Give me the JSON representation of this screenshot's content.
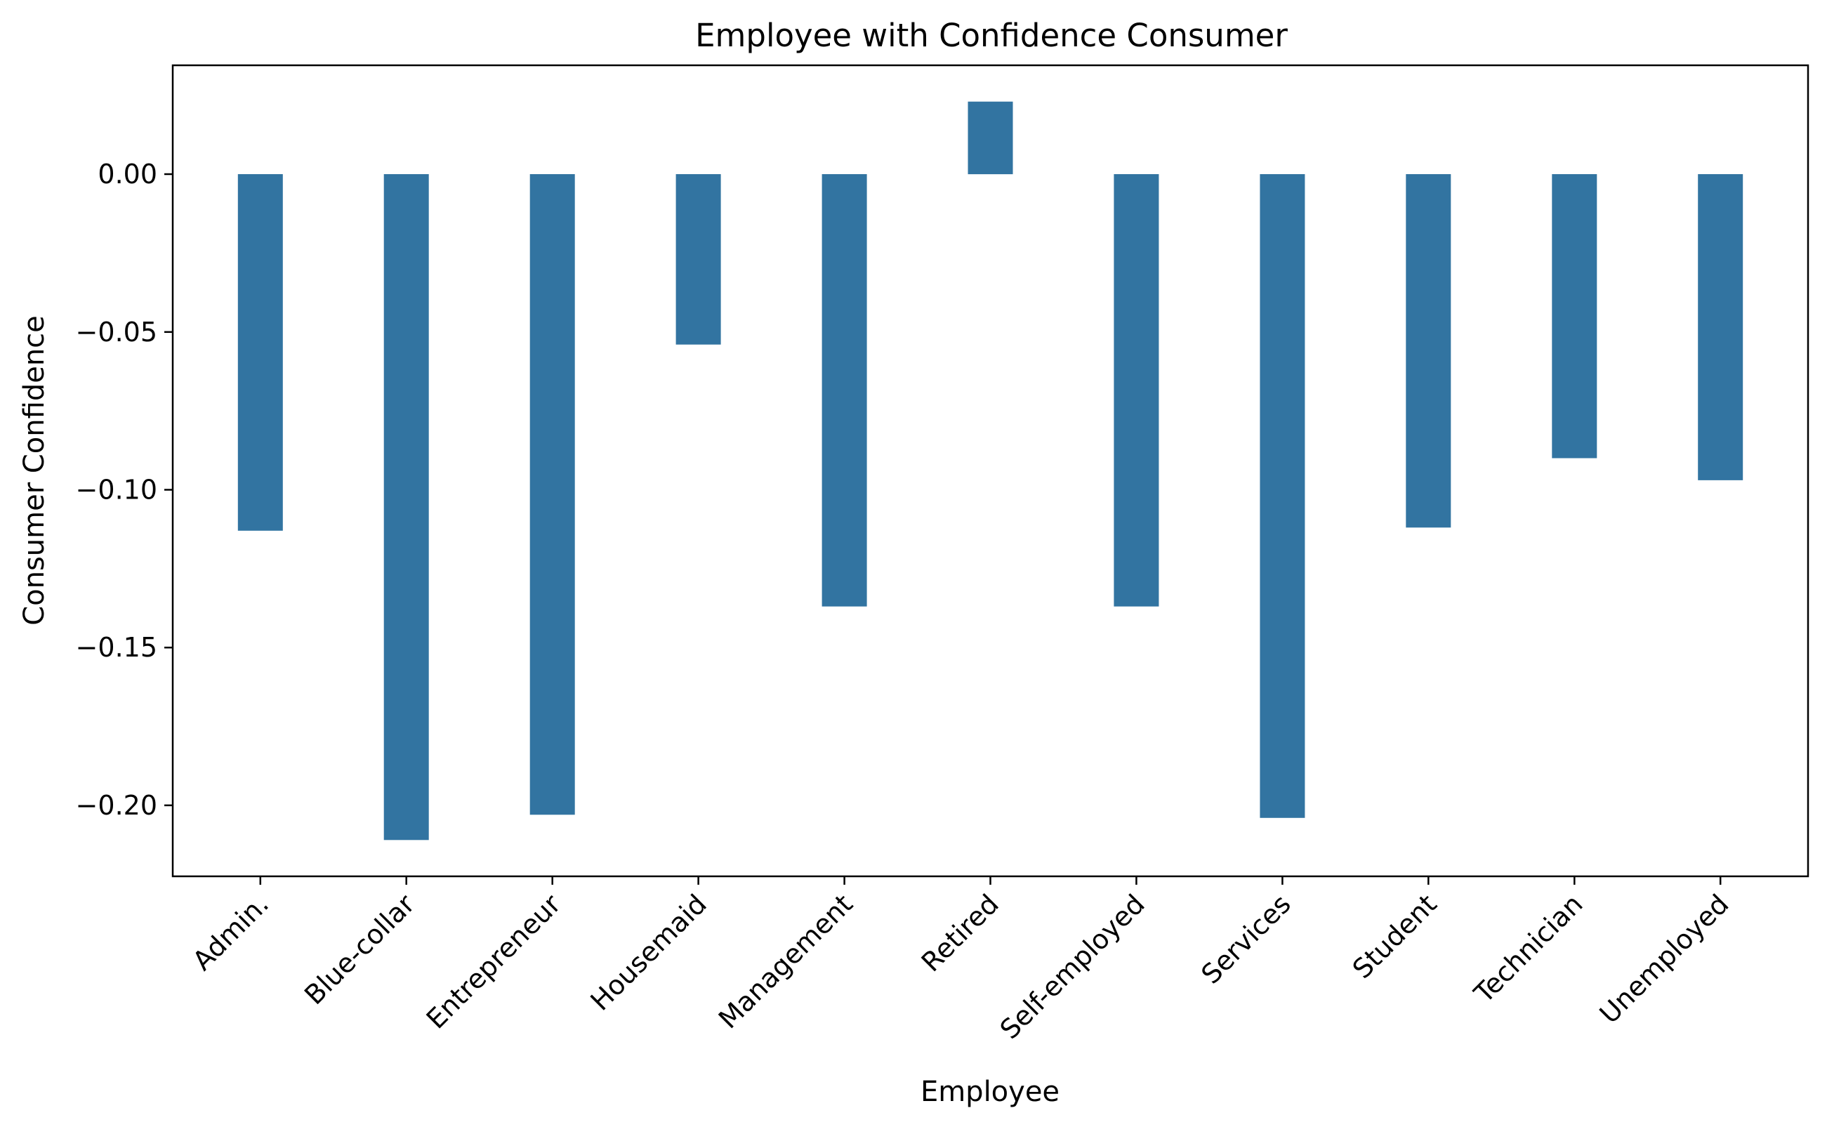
{
  "chart_data": {
    "type": "bar",
    "title": "Employee with Confidence Consumer",
    "xlabel": "Employee",
    "ylabel": "Consumer Confidence",
    "categories": [
      "Admin.",
      "Blue-collar",
      "Entrepreneur",
      "Housemaid",
      "Management",
      "Retired",
      "Self-employed",
      "Services",
      "Student",
      "Technician",
      "Unemployed"
    ],
    "values": [
      -0.113,
      -0.211,
      -0.203,
      -0.054,
      -0.137,
      0.023,
      -0.137,
      -0.204,
      -0.112,
      -0.09,
      -0.097
    ],
    "ylim": [
      -0.2225,
      0.0345
    ],
    "yticks": [
      0.0,
      -0.05,
      -0.1,
      -0.15,
      -0.2
    ],
    "ytick_labels": [
      "0.00",
      "−0.05",
      "−0.10",
      "−0.15",
      "−0.20"
    ],
    "grid": false,
    "legend": "none",
    "bar_color": "#3274a1"
  }
}
